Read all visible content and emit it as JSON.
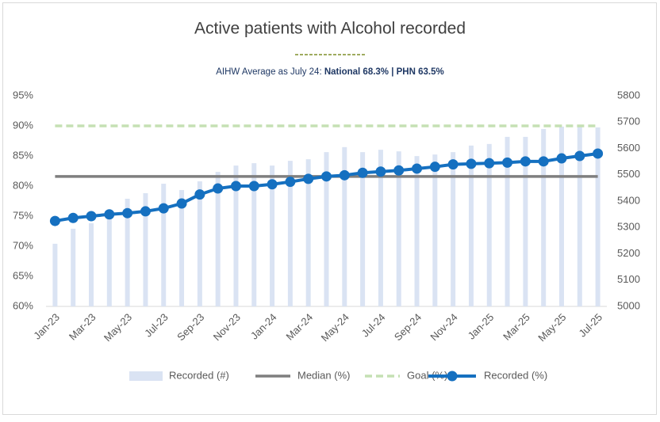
{
  "chart_data": {
    "type": "combo",
    "title": "Active patients with Alcohol recorded",
    "subtitle": [
      "AIHW Average as July 24:",
      "National 68.3% | PHN 63.5%"
    ],
    "categories": [
      "Jan-23",
      null,
      "Mar-23",
      null,
      "May-23",
      null,
      "Jul-23",
      null,
      "Sep-23",
      null,
      "Nov-23",
      null,
      "Jan-24",
      null,
      "Mar-24",
      null,
      "May-24",
      null,
      "Jul-24",
      null,
      "Sep-24",
      null,
      "Nov-24",
      null,
      "Jan-25",
      null,
      "Mar-25",
      null,
      "May-25",
      null,
      "Jul-25"
    ],
    "ylim": [
      60,
      95
    ],
    "yticks": [
      {
        "value": 60,
        "label": "60%"
      },
      {
        "value": 65,
        "label": "65%"
      },
      {
        "value": 70,
        "label": "70%"
      },
      {
        "value": 75,
        "label": "75%"
      },
      {
        "value": 80,
        "label": "80%"
      },
      {
        "value": 85,
        "label": "85%"
      },
      {
        "value": 90,
        "label": "90%"
      },
      {
        "value": 95,
        "label": "95%"
      }
    ],
    "y2lim": [
      5000,
      5800
    ],
    "y2ticks": [
      5000,
      5100,
      5200,
      5300,
      5400,
      5500,
      5600,
      5700,
      5800
    ],
    "grid": false,
    "series": [
      {
        "name": "Recorded (#)",
        "kind": "bar",
        "axis": "y2",
        "color": "#dae3f3",
        "values": [
          5238,
          5295,
          5316,
          5346,
          5409,
          5430,
          5466,
          5442,
          5475,
          5511,
          5535,
          5544,
          5535,
          5553,
          5559,
          5586,
          5605,
          5586,
          5595,
          5589,
          5571,
          5577,
          5586,
          5611,
          5617,
          5644,
          5644,
          5674,
          5683,
          5686,
          5680
        ]
      },
      {
        "name": "Median (%)",
        "kind": "line",
        "color": "#7f7f7f",
        "dash": false,
        "markers": false,
        "values": [
          81.6,
          81.6,
          81.6,
          81.6,
          81.6,
          81.6,
          81.6,
          81.6,
          81.6,
          81.6,
          81.6,
          81.6,
          81.6,
          81.6,
          81.6,
          81.6,
          81.6,
          81.6,
          81.6,
          81.6,
          81.6,
          81.6,
          81.6,
          81.6,
          81.6,
          81.6,
          81.6,
          81.6,
          81.6,
          81.6,
          81.6
        ]
      },
      {
        "name": "Goal (%)",
        "kind": "line",
        "color": "#c5e0b4",
        "dash": true,
        "markers": false,
        "values": [
          90,
          90,
          90,
          90,
          90,
          90,
          90,
          90,
          90,
          90,
          90,
          90,
          90,
          90,
          90,
          90,
          90,
          90,
          90,
          90,
          90,
          90,
          90,
          90,
          90,
          90,
          90,
          90,
          90,
          90,
          90
        ]
      },
      {
        "name": "Recorded (%)",
        "kind": "line",
        "color": "#1570c0",
        "dash": false,
        "markers": true,
        "values": [
          74.2,
          74.7,
          75.0,
          75.3,
          75.5,
          75.8,
          76.3,
          77.1,
          78.6,
          79.6,
          80.0,
          80.0,
          80.3,
          80.7,
          81.2,
          81.6,
          81.8,
          82.2,
          82.4,
          82.6,
          82.9,
          83.2,
          83.6,
          83.7,
          83.8,
          83.9,
          84.1,
          84.1,
          84.6,
          85.0,
          85.4
        ]
      }
    ]
  }
}
